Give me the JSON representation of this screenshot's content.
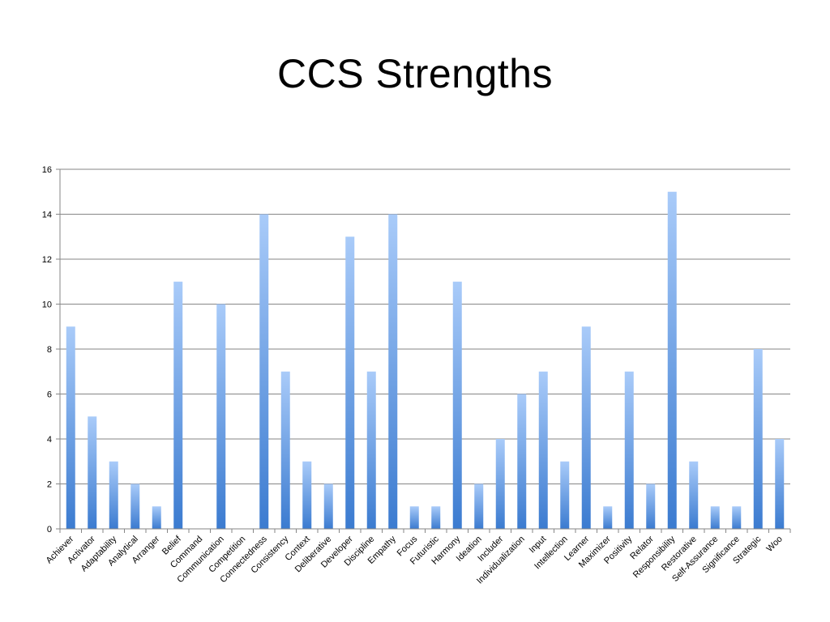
{
  "slide": {
    "title": "CCS Strengths"
  },
  "chart_data": {
    "type": "bar",
    "title": "",
    "xlabel": "",
    "ylabel": "",
    "ylim": [
      0,
      16
    ],
    "yticks": [
      0,
      2,
      4,
      6,
      8,
      10,
      12,
      14,
      16
    ],
    "grid": true,
    "legend": "none",
    "colors": {
      "bar_top": "#a9cbf9",
      "bar_bottom": "#3b7bd0",
      "grid": "#868686",
      "axis": "#868686"
    },
    "categories": [
      "Achiever",
      "Activator",
      "Adaptability",
      "Analytical",
      "Arranger",
      "Belief",
      "Command",
      "Communication",
      "Competition",
      "Connectedness",
      "Consistency",
      "Context",
      "Deliberative",
      "Developer",
      "Discipline",
      "Empathy",
      "Focus",
      "Futuristic",
      "Harmony",
      "Ideation",
      "Includer",
      "Individualization",
      "Input",
      "Intellection",
      "Learner",
      "Maximizer",
      "Positivity",
      "Relator",
      "Responsibility",
      "Restorative",
      "Self-Assurance",
      "Significance",
      "Strategic",
      "Woo"
    ],
    "values": [
      9,
      5,
      3,
      2,
      1,
      11,
      0,
      10,
      0,
      14,
      7,
      3,
      2,
      13,
      7,
      14,
      1,
      1,
      11,
      2,
      4,
      6,
      7,
      3,
      9,
      1,
      7,
      2,
      15,
      3,
      1,
      1,
      8,
      4
    ]
  }
}
